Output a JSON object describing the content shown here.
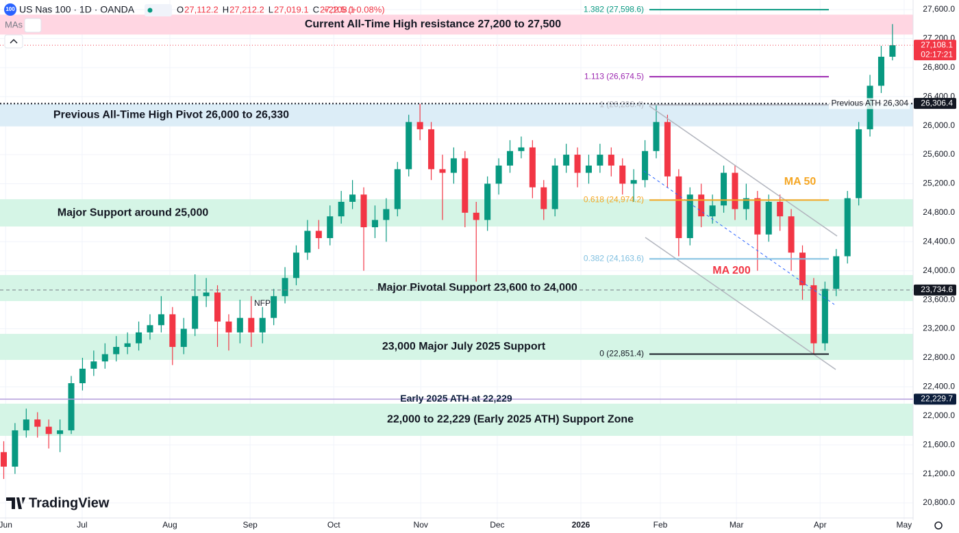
{
  "header": {
    "logo": "100",
    "symbol": "US Nas 100 · 1D · OANDA",
    "ohlc": [
      {
        "key": "O",
        "value": "27,112.2"
      },
      {
        "key": "H",
        "value": "27,212.2"
      },
      {
        "key": "L",
        "value": "27,019.1"
      },
      {
        "key": "C",
        "value": "27,108.1"
      }
    ],
    "change": "+22.5 (+0.08%)",
    "mas": "MAs"
  },
  "brand": "TradingView",
  "chart_data": {
    "type": "candlestick",
    "up_color": "#089981",
    "down_color": "#f23645",
    "grid": true,
    "xlim": [
      0,
      243.5
    ],
    "xticks": [
      {
        "value": 1.5,
        "label": "Jun"
      },
      {
        "value": 21.9,
        "label": "Jul"
      },
      {
        "value": 45.3,
        "label": "Aug"
      },
      {
        "value": 66.7,
        "label": "Sep"
      },
      {
        "value": 89,
        "label": "Oct"
      },
      {
        "value": 112.2,
        "label": "Nov"
      },
      {
        "value": 132.6,
        "label": "Dec"
      },
      {
        "value": 154.9,
        "label": "2026",
        "emphasis": true
      },
      {
        "value": 176.1,
        "label": "Feb"
      },
      {
        "value": 196.4,
        "label": "Mar"
      },
      {
        "value": 218.7,
        "label": "Apr"
      },
      {
        "value": 241.1,
        "label": "May"
      }
    ],
    "ylim": [
      20564.3,
      27732
    ],
    "yticks": [
      {
        "value": 20800,
        "label": "20,800.0"
      },
      {
        "value": 21200,
        "label": "21,200.0"
      },
      {
        "value": 21600,
        "label": "21,600.0"
      },
      {
        "value": 22000,
        "label": "22,000.0"
      },
      {
        "value": 22400,
        "label": "22,400.0"
      },
      {
        "value": 22800,
        "label": "22,800.0"
      },
      {
        "value": 23200,
        "label": "23,200.0"
      },
      {
        "value": 23600,
        "label": "23,600.0"
      },
      {
        "value": 24000,
        "label": "24,000.0"
      },
      {
        "value": 24400,
        "label": "24,400.0"
      },
      {
        "value": 24800,
        "label": "24,800.0"
      },
      {
        "value": 25200,
        "label": "25,200.0"
      },
      {
        "value": 25600,
        "label": "25,600.0"
      },
      {
        "value": 26000,
        "label": "26,000.0"
      },
      {
        "value": 26400,
        "label": "26,400.0"
      },
      {
        "value": 26800,
        "label": "26,800.0"
      },
      {
        "value": 27200,
        "label": "27,200.0"
      },
      {
        "value": 27600,
        "label": "27,600.0"
      }
    ],
    "candles": {
      "x": [
        1,
        4,
        7,
        10,
        13,
        16,
        19,
        22,
        25,
        28,
        31,
        34,
        37,
        40,
        43,
        46,
        49,
        52,
        55,
        58,
        61,
        64,
        67,
        70,
        73,
        76,
        79,
        82,
        85,
        88,
        91,
        94,
        97,
        100,
        103,
        106,
        109,
        112,
        115,
        118,
        121,
        124,
        127,
        130,
        133,
        136,
        139,
        142,
        145,
        148,
        151,
        154,
        157,
        160,
        163,
        166,
        169,
        172,
        175,
        178,
        181,
        184,
        187,
        190,
        193,
        196,
        199,
        202,
        205,
        208,
        211,
        214,
        217,
        220,
        223,
        226,
        229,
        232,
        235,
        238
      ],
      "open": [
        21500,
        21300,
        21800,
        21950,
        21850,
        21750,
        21800,
        22450,
        22650,
        22750,
        22850,
        22950,
        23000,
        23150,
        23250,
        23400,
        22950,
        23200,
        23650,
        23700,
        23300,
        23150,
        23350,
        23150,
        23350,
        23650,
        23900,
        24250,
        24550,
        24450,
        24750,
        24950,
        25050,
        24600,
        24700,
        24850,
        25400,
        26050,
        25950,
        25400,
        25350,
        25550,
        24800,
        24700,
        25200,
        25450,
        25650,
        25700,
        25150,
        24850,
        25450,
        25600,
        25350,
        25450,
        25600,
        25450,
        25200,
        25250,
        25650,
        26050,
        25300,
        24450,
        25050,
        24750,
        24900,
        25350,
        24850,
        25000,
        24500,
        24950,
        24750,
        24250,
        23800,
        23000,
        23750,
        24200,
        25000,
        25950,
        26550,
        26950
      ],
      "high": [
        21650,
        21900,
        22100,
        22050,
        21950,
        21950,
        22550,
        22800,
        22900,
        23000,
        23100,
        23150,
        23300,
        23400,
        23650,
        23500,
        23350,
        23950,
        23900,
        23800,
        23400,
        23600,
        23650,
        23500,
        23750,
        24050,
        24350,
        24700,
        24700,
        24900,
        25100,
        25250,
        25150,
        24900,
        25000,
        25500,
        26150,
        26300,
        26050,
        25600,
        25700,
        25650,
        24950,
        25300,
        25550,
        25800,
        25850,
        25800,
        25250,
        25550,
        25750,
        25700,
        25600,
        25750,
        25700,
        25550,
        25400,
        25800,
        26286.4,
        26150,
        25400,
        25150,
        25200,
        25050,
        25450,
        25450,
        25200,
        25100,
        25050,
        25050,
        24850,
        24350,
        23900,
        23850,
        24300,
        25100,
        26050,
        26700,
        27100,
        27400
      ],
      "low": [
        21130,
        21200,
        21700,
        21700,
        21550,
        21500,
        21750,
        22350,
        22550,
        22650,
        22750,
        22850,
        22900,
        23050,
        23150,
        22700,
        22850,
        23100,
        23500,
        22950,
        22900,
        23000,
        22950,
        23000,
        23250,
        23550,
        23800,
        24150,
        24300,
        24350,
        24650,
        24850,
        24000,
        24450,
        24400,
        24750,
        25300,
        25800,
        25250,
        24700,
        25200,
        24600,
        23850,
        24550,
        25050,
        25350,
        25550,
        25000,
        24700,
        24750,
        25350,
        25150,
        25200,
        25350,
        25300,
        25050,
        24950,
        25150,
        25550,
        25150,
        24200,
        24350,
        24600,
        24650,
        24800,
        24700,
        24700,
        24000,
        24400,
        24550,
        24000,
        23600,
        22851.4,
        22900,
        23650,
        24100,
        24900,
        25850,
        26450,
        26900
      ],
      "close": [
        21300,
        21800,
        21950,
        21850,
        21750,
        21800,
        22450,
        22650,
        22750,
        22850,
        22950,
        23000,
        23150,
        23250,
        23400,
        22950,
        23200,
        23650,
        23700,
        23300,
        23150,
        23350,
        23150,
        23350,
        23650,
        23900,
        24250,
        24550,
        24450,
        24750,
        24950,
        25050,
        24600,
        24700,
        24850,
        25400,
        26050,
        25950,
        25400,
        25350,
        25550,
        24800,
        24700,
        25200,
        25450,
        25650,
        25700,
        25150,
        24850,
        25450,
        25600,
        25350,
        25450,
        25600,
        25450,
        25200,
        25250,
        25650,
        26050,
        25300,
        24450,
        25050,
        24750,
        24900,
        25350,
        24850,
        25000,
        24500,
        24950,
        24750,
        24250,
        23800,
        23000,
        23750,
        24200,
        25000,
        25950,
        26550,
        26950,
        27108.1
      ]
    },
    "zones": [
      {
        "from": 27256,
        "to": 27530,
        "label": "Current All-Time High resistance 27,200 to 27,500",
        "color": "#ffd6e2"
      },
      {
        "from": 25990,
        "to": 26300,
        "label": "Previous All-Time High Pivot 26,000 to 26,330",
        "color": "#dcedf7"
      },
      {
        "from": 24610,
        "to": 24986,
        "label": "Major Support around 25,000",
        "color": "#d5f5e6"
      },
      {
        "from": 23582,
        "to": 23941,
        "label": "Major Pivotal Support 23,600 to 24,000",
        "color": "#d5f5e6"
      },
      {
        "from": 22771,
        "to": 23130,
        "label": "23,000 Major July 2025 Support",
        "color": "#d5f5e6"
      },
      {
        "from": 21724,
        "to": 22168,
        "label": "22,000 to 22,229 (Early 2025 ATH) Support Zone",
        "color": "#d5f5e6"
      }
    ],
    "fib_levels": [
      {
        "value": 27598.6,
        "label": "1.382 (27,598.6)",
        "color": "#089981"
      },
      {
        "value": 26674.5,
        "label": "1.113 (26,674.5)",
        "color": "#9c27b0"
      },
      {
        "value": 26286.4,
        "label": "1 (26,286.4)",
        "color": "#b2b5be"
      },
      {
        "value": 24974.2,
        "label": "0.618 (24,974.2)",
        "color": "#f5a623"
      },
      {
        "value": 24163.6,
        "label": "0.382 (24,163.6)",
        "color": "#7fbfe0"
      },
      {
        "value": 22851.4,
        "label": "0 (22,851.4)",
        "color": "#131722"
      }
    ],
    "lines": [
      {
        "value": 26304,
        "label": "Previous ATH 26,304",
        "color": "#131722",
        "style": "dotted"
      },
      {
        "value": 22229.7,
        "label": "Early 2025 ATH at 22,229",
        "color": "#b39ddb",
        "style": "solid"
      }
    ],
    "price_tags": [
      {
        "value": 27108.1,
        "label": "27,108.1",
        "sub": "02:17:21",
        "color": "#f23645"
      },
      {
        "value": 26306.4,
        "label": "26,306.4",
        "color": "#131722"
      },
      {
        "value": 23734.6,
        "label": "23,734.6",
        "color": "#131722"
      },
      {
        "value": 22229.7,
        "label": "22,229.7",
        "color": "#0c1e3c"
      }
    ],
    "annotations": [
      {
        "text": "MA 50",
        "color": "#f5a623"
      },
      {
        "text": "MA 200",
        "color": "#f23645"
      },
      {
        "text": "NFP",
        "color": "#131722"
      }
    ]
  }
}
